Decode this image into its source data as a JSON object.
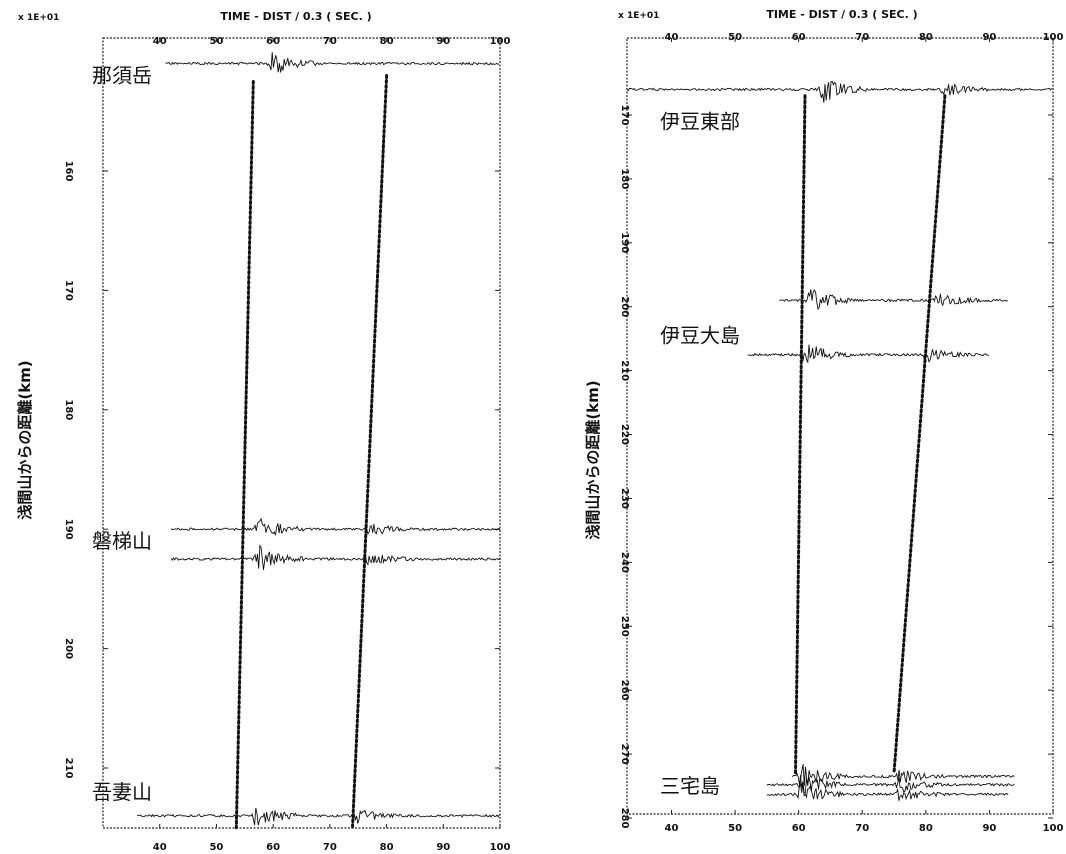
{
  "chart_data": [
    {
      "type": "scatter",
      "subtype": "seismic-record-section",
      "title": "TIME - DIST / 0.3 ( SEC. )",
      "x_multiplier": "x 1E+01",
      "xlabel": "TIME - DIST / 0.3 ( SEC. )",
      "ylabel": "浅間山からの距離(km)",
      "xlim": [
        30,
        100
      ],
      "ylim": [
        150,
        215
      ],
      "x_ticks_top": [
        "40",
        "50",
        "60",
        "70",
        "80",
        "90",
        "100"
      ],
      "x_ticks_bottom": [
        "40",
        "50",
        "60",
        "70",
        "80",
        "90",
        "100"
      ],
      "y_ticks": [
        "160",
        "170",
        "180",
        "190",
        "200",
        "210"
      ],
      "stations": [
        {
          "label": "那須岳",
          "label_distance": 152
        },
        {
          "label": "磐梯山",
          "label_distance": 191
        },
        {
          "label": "吾妻山",
          "label_distance": 212
        }
      ],
      "traces": [
        {
          "distance": 151,
          "x_start": 41,
          "x_end": 100,
          "onsets": [
            60
          ]
        },
        {
          "distance": 190,
          "x_start": 42,
          "x_end": 100,
          "onsets": [
            57.5,
            77
          ]
        },
        {
          "distance": 192.5,
          "x_start": 42,
          "x_end": 100,
          "onsets": [
            57.5,
            77
          ]
        },
        {
          "distance": 214,
          "x_start": 36,
          "x_end": 100,
          "onsets": [
            57,
            75
          ]
        }
      ],
      "phase_lines": [
        {
          "points": [
            [
              56.5,
              152.5
            ],
            [
              53.5,
              215
            ]
          ]
        },
        {
          "points": [
            [
              80,
              152
            ],
            [
              74,
              215
            ]
          ]
        }
      ]
    },
    {
      "type": "scatter",
      "subtype": "seismic-record-section",
      "title": "TIME - DIST / 0.3 ( SEC. )",
      "x_multiplier": "x 1E+01",
      "xlabel": "TIME - DIST / 0.3 ( SEC. )",
      "ylabel": "浅間山からの距離(km)",
      "xlim": [
        33,
        100
      ],
      "ylim": [
        165,
        280
      ],
      "x_ticks_top": [
        "40",
        "50",
        "60",
        "70",
        "80",
        "90",
        "100"
      ],
      "x_ticks_bottom": [
        "40",
        "50",
        "60",
        "70",
        "80",
        "90",
        "100"
      ],
      "y_ticks": [
        "170",
        "180",
        "190",
        "200",
        "210",
        "220",
        "230",
        "240",
        "250",
        "260",
        "270",
        "280"
      ],
      "stations": [
        {
          "label": "伊豆東部",
          "label_distance": 171
        },
        {
          "label": "伊豆大島",
          "label_distance": 204.5
        },
        {
          "label": "三宅島",
          "label_distance": 275
        }
      ],
      "traces": [
        {
          "distance": 166,
          "x_start": 33,
          "x_end": 100,
          "onsets": [
            64,
            83
          ]
        },
        {
          "distance": 199,
          "x_start": 57,
          "x_end": 93,
          "onsets": [
            62,
            82
          ]
        },
        {
          "distance": 207.5,
          "x_start": 52,
          "x_end": 90,
          "onsets": [
            61,
            80
          ]
        },
        {
          "distance": 273.5,
          "x_start": 59,
          "x_end": 94,
          "onsets": [
            60.5,
            76
          ]
        },
        {
          "distance": 274.8,
          "x_start": 55,
          "x_end": 94,
          "onsets": [
            60.5,
            76
          ]
        },
        {
          "distance": 276.3,
          "x_start": 55,
          "x_end": 93,
          "onsets": [
            60.5,
            76
          ]
        }
      ],
      "phase_lines": [
        {
          "points": [
            [
              61,
              167
            ],
            [
              59.5,
              273
            ]
          ]
        },
        {
          "points": [
            [
              83,
              167
            ],
            [
              75,
              273
            ]
          ]
        }
      ]
    }
  ],
  "colors": {
    "ink": "#111111",
    "background": "#ffffff"
  }
}
